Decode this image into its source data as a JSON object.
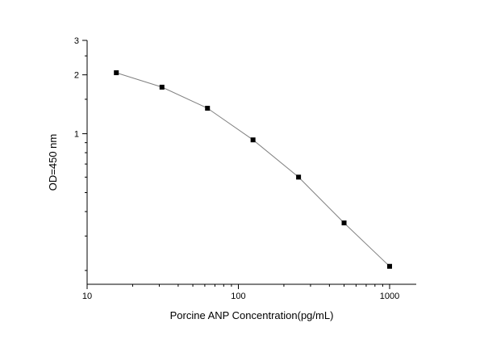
{
  "chart_data": {
    "type": "scatter",
    "xlabel": "Porcine ANP  Concentration(pg/mL)",
    "ylabel": "OD=450 nm",
    "x_scale": "log",
    "y_scale": "log",
    "xlim": [
      10,
      1500
    ],
    "ylim": [
      0.17,
      3
    ],
    "x_ticks": [
      {
        "value": 10,
        "label": "10"
      },
      {
        "value": 100,
        "label": "100"
      },
      {
        "value": 1000,
        "label": "1000"
      }
    ],
    "y_ticks": [
      {
        "value": 1,
        "label": "1"
      },
      {
        "value": 2,
        "label": "2"
      },
      {
        "value": 3,
        "label": "3"
      }
    ],
    "grid": false,
    "fit_line": true,
    "colors": {
      "marker": "#000000",
      "line": "#808080",
      "axis": "#000000"
    },
    "series": [
      {
        "x": [
          15.6,
          31.25,
          62.5,
          125,
          250,
          500,
          1000
        ],
        "y": [
          2.05,
          1.73,
          1.35,
          0.93,
          0.6,
          0.35,
          0.21
        ]
      }
    ]
  }
}
